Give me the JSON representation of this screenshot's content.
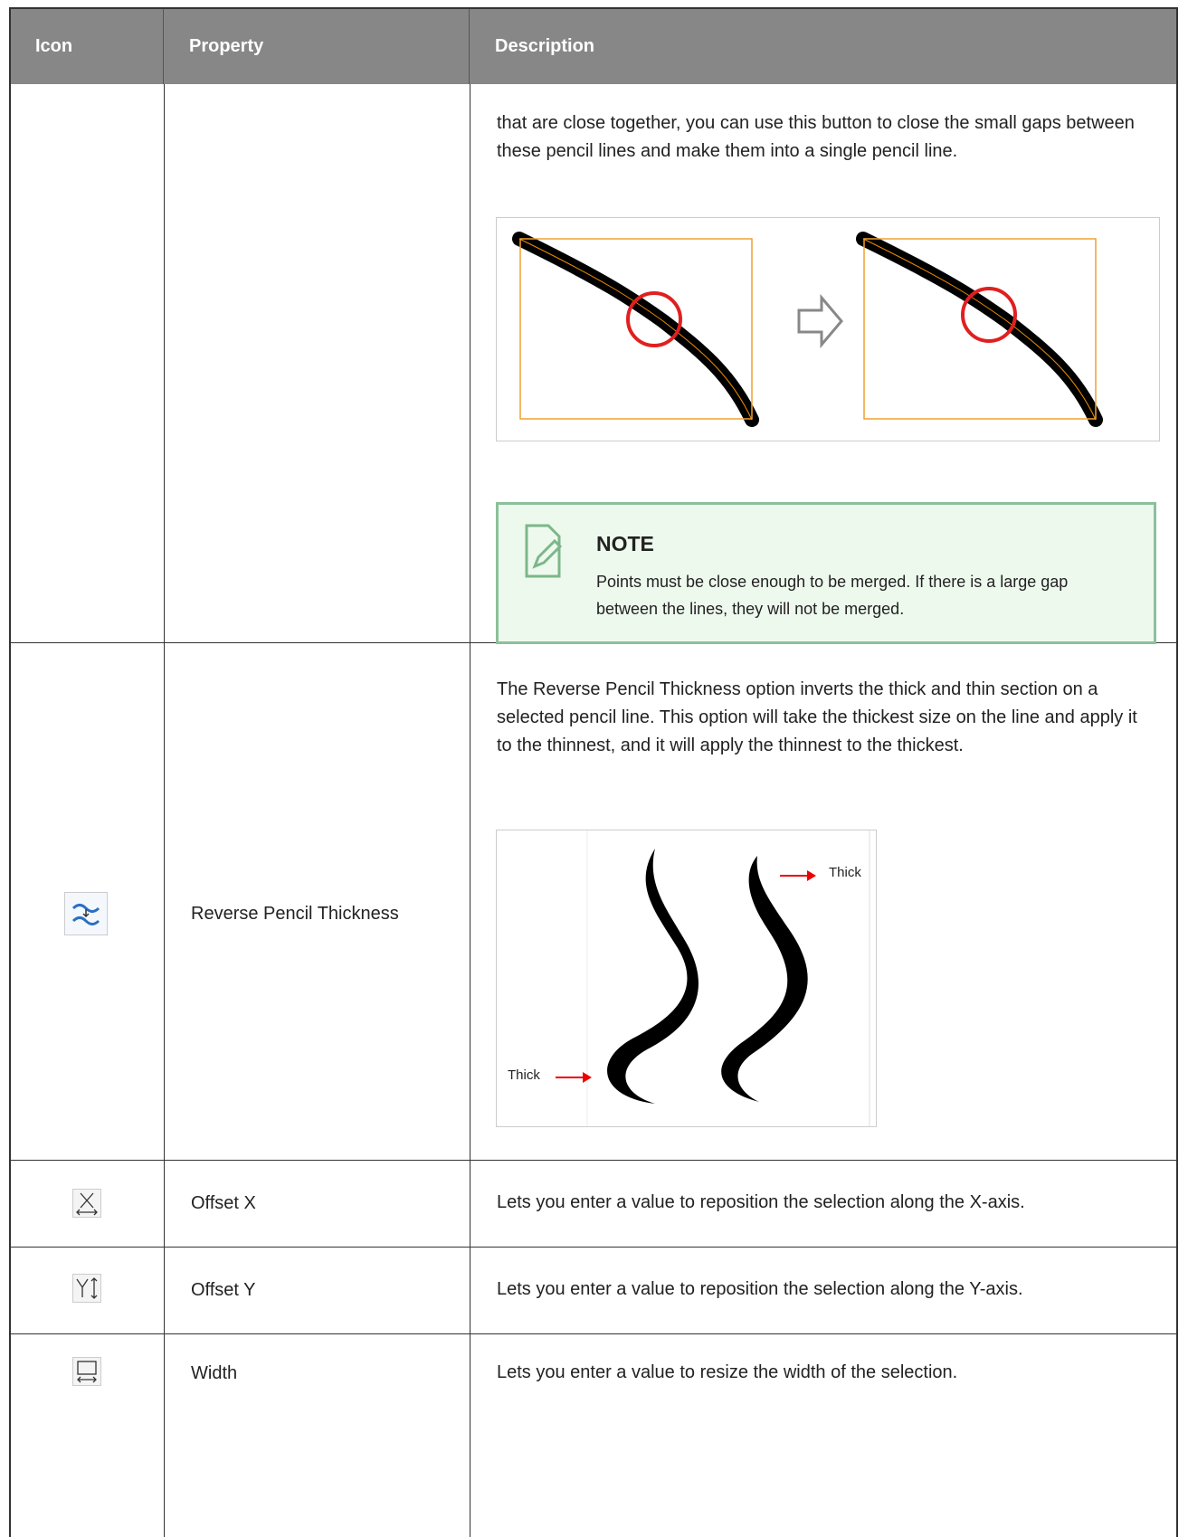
{
  "table": {
    "columns": [
      "Icon",
      "Property",
      "Description"
    ],
    "rows": [
      {
        "description": [
          "that are close together, you can use this button to close the small gaps between these pencil lines and make them into a single pencil line."
        ],
        "note": {
          "title": "NOTE",
          "text": "Points must be close enough to be merged. If there is a large gap between the lines, they will not be merged."
        }
      },
      {
        "property": "Reverse Pencil Thickness",
        "description": [
          "The Reverse Pencil Thickness option inverts the thick and thin section on a selected pencil line. This option will take the thickest size on the line and apply it to the thinnest, and it will apply the thinnest to the thickest."
        ],
        "figure_labels": [
          "Thick",
          "Thick"
        ]
      },
      {
        "property": "Offset X",
        "description": [
          "Lets you enter a value to reposition the selection along the X-axis."
        ]
      },
      {
        "property": "Offset Y",
        "description": [
          "Lets you enter a value to reposition the selection along the Y-axis."
        ]
      },
      {
        "property": "Width",
        "description": [
          "Lets you enter a value to resize the width of the selection."
        ]
      }
    ]
  }
}
